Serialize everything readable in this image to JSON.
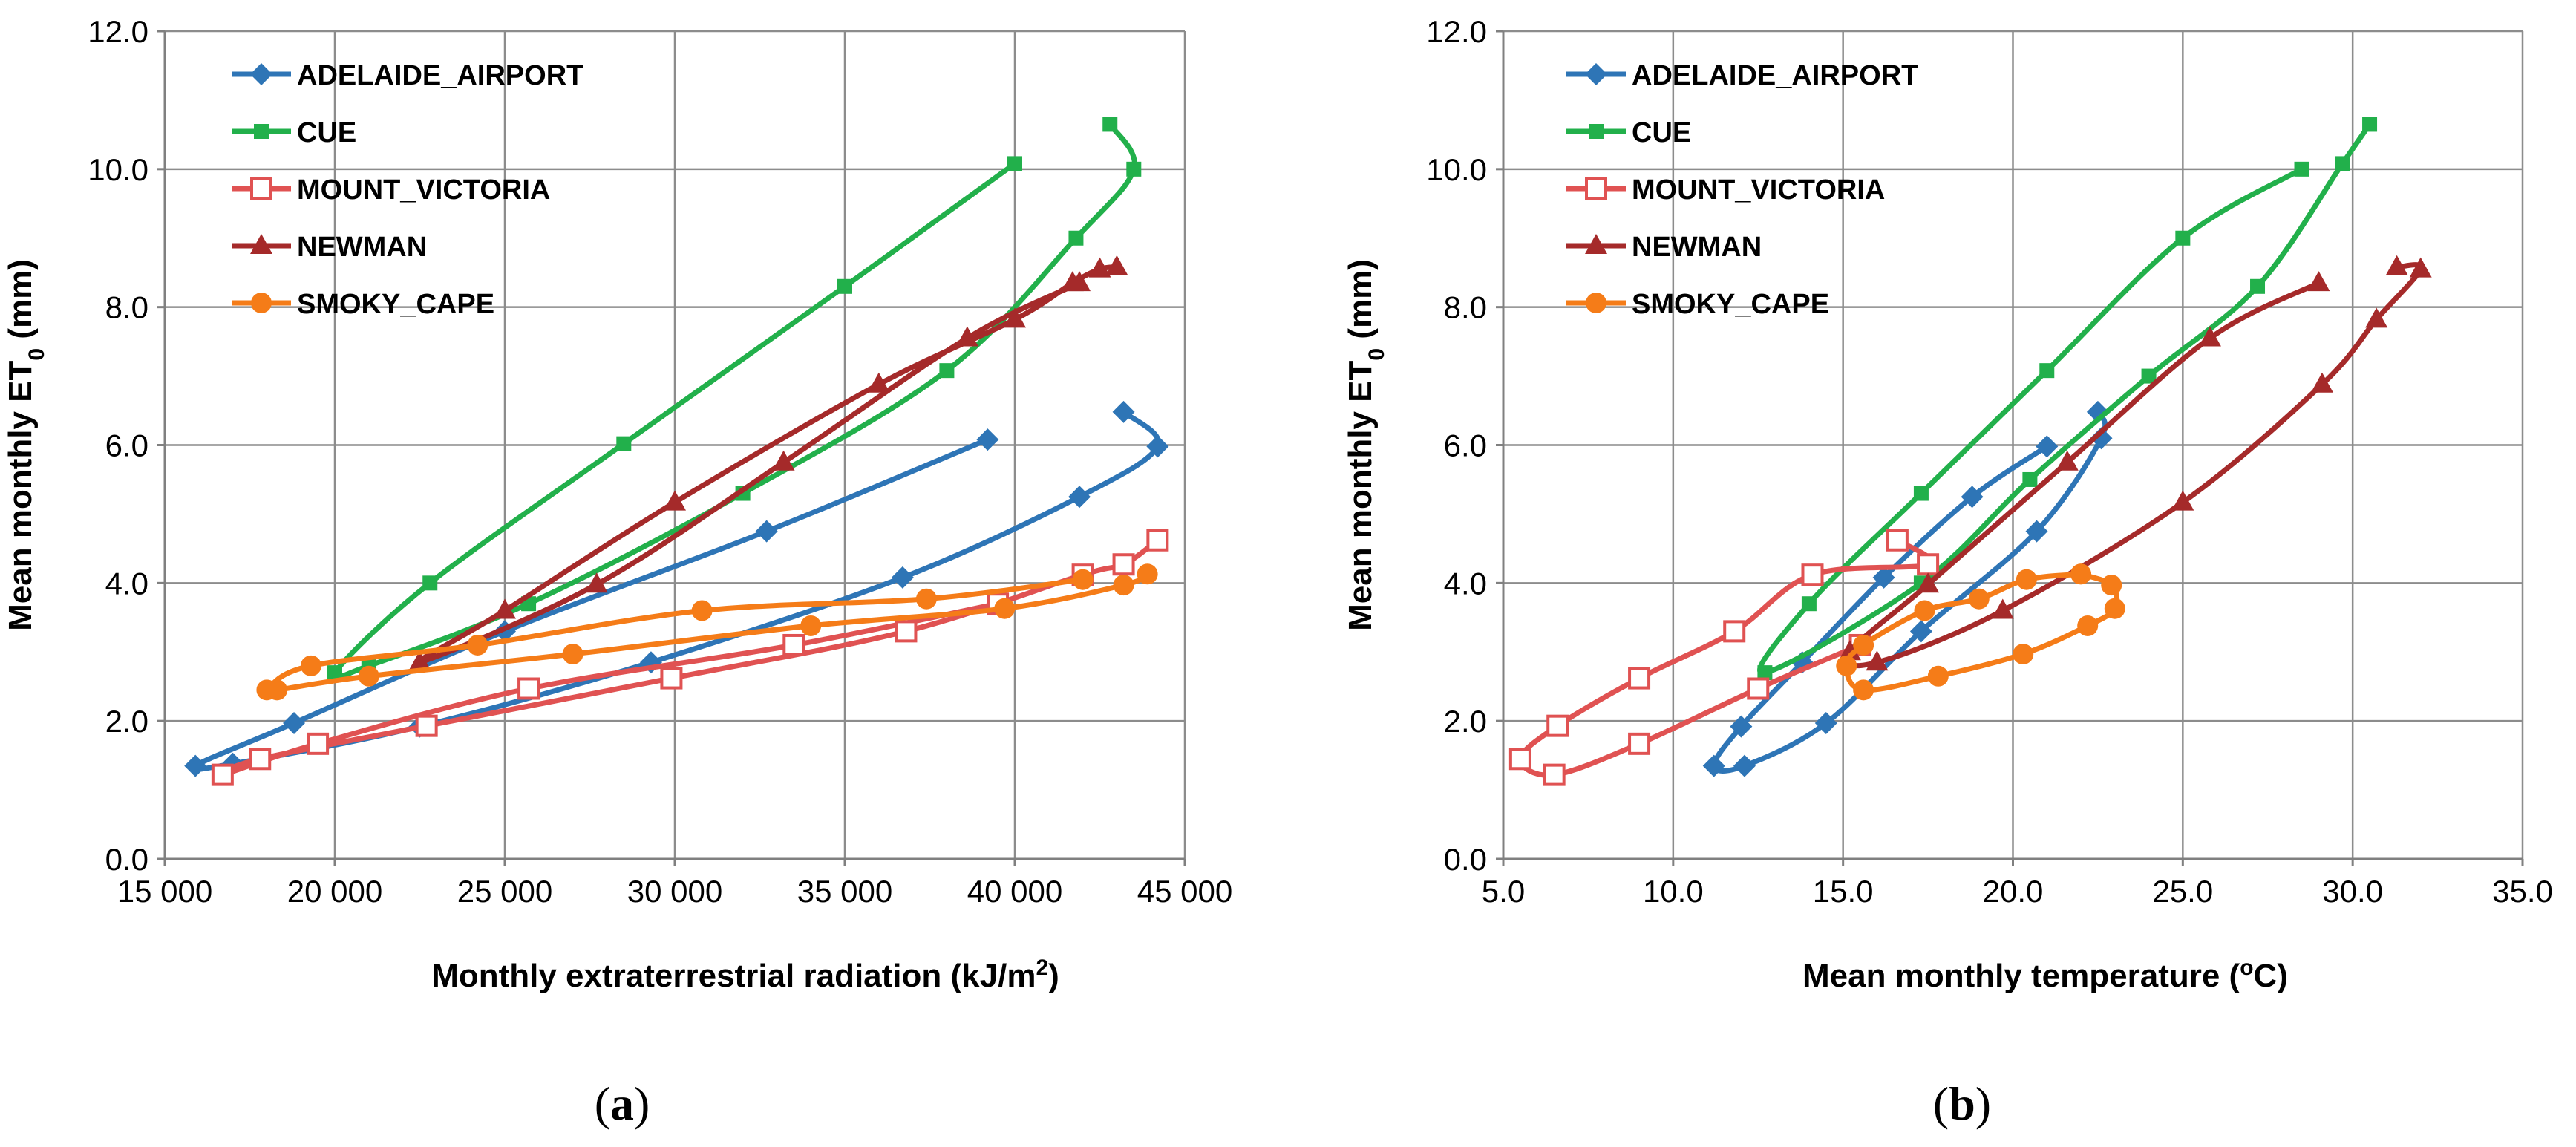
{
  "chart_data": [
    {
      "type": "line",
      "panel_label": "(a)",
      "panel_letter": "a",
      "xlabel": "Monthly extraterrestrial radiation (kJ/m",
      "xlabel_sup": "2",
      "xlabel_suffix": ")",
      "ylabel": "Mean monthly ET",
      "ylabel_sub": "0",
      "ylabel_suffix": " (mm)",
      "xlim": [
        15000,
        45000
      ],
      "ylim": [
        0,
        12
      ],
      "xticks": [
        15000,
        20000,
        25000,
        30000,
        35000,
        40000,
        45000
      ],
      "xtick_labels": [
        "15 000",
        "20 000",
        "25 000",
        "30 000",
        "35 000",
        "40 000",
        "45 000"
      ],
      "yticks": [
        0,
        2,
        4,
        6,
        8,
        10,
        12
      ],
      "ytick_labels": [
        "0.0",
        "2.0",
        "4.0",
        "6.0",
        "8.0",
        "10.0",
        "12.0"
      ],
      "grid": true,
      "legend_position": "top-left",
      "series": [
        {
          "name": "ADELAIDE_AIRPORT",
          "color": "#2E75B6",
          "marker": "diamond",
          "x": [
            43200,
            44200,
            41900,
            36700,
            29300,
            22500,
            17000,
            15900,
            18800,
            25000,
            32700,
            39200
          ],
          "y": [
            6.48,
            5.98,
            5.25,
            4.08,
            2.85,
            1.92,
            1.38,
            1.35,
            1.97,
            3.3,
            4.75,
            6.08
          ]
        },
        {
          "name": "CUE",
          "color": "#22B04B",
          "marker": "square",
          "x": [
            42800,
            43500,
            41800,
            38000,
            32000,
            25700,
            21000,
            20000,
            22800,
            28500,
            35000,
            40000
          ],
          "y": [
            10.65,
            10.0,
            9.0,
            7.08,
            5.3,
            3.7,
            2.8,
            2.7,
            4.0,
            6.02,
            8.3,
            10.08
          ]
        },
        {
          "name": "MOUNT_VICTORIA",
          "color": "#E05252",
          "marker": "square-open",
          "x": [
            44200,
            43200,
            42000,
            36800,
            29900,
            22700,
            17800,
            16700,
            19500,
            25700,
            33500,
            39500
          ],
          "y": [
            4.62,
            4.27,
            4.12,
            3.3,
            2.62,
            1.93,
            1.45,
            1.22,
            1.67,
            2.47,
            3.1,
            3.7
          ]
        },
        {
          "name": "NEWMAN",
          "color": "#A52A2A",
          "marker": "triangle",
          "x": [
            43000,
            42500,
            41700,
            40000,
            36000,
            30000,
            25000,
            22500,
            27700,
            33200,
            38600,
            41900
          ],
          "y": [
            8.58,
            8.55,
            8.35,
            7.82,
            6.88,
            5.17,
            3.6,
            2.85,
            3.98,
            5.75,
            7.55,
            8.35
          ]
        },
        {
          "name": "SMOKY_CAPE",
          "color": "#F57C18",
          "marker": "circle",
          "x": [
            43900,
            43200,
            39700,
            34000,
            27000,
            21000,
            18300,
            18000,
            19300,
            24200,
            30800,
            37400,
            42000
          ],
          "y": [
            4.13,
            3.97,
            3.63,
            3.38,
            2.97,
            2.65,
            2.45,
            2.45,
            2.8,
            3.1,
            3.6,
            3.77,
            4.05
          ]
        }
      ]
    },
    {
      "type": "line",
      "panel_label": "(b)",
      "panel_letter": "b",
      "xlabel": "Mean monthly temperature (",
      "xlabel_sup": "o",
      "xlabel_suffix": "C)",
      "ylabel": "Mean monthly ET",
      "ylabel_sub": "0",
      "ylabel_suffix": " (mm)",
      "xlim": [
        5,
        35
      ],
      "ylim": [
        0,
        12
      ],
      "xticks": [
        5,
        10,
        15,
        20,
        25,
        30,
        35
      ],
      "xtick_labels": [
        "5.0",
        "10.0",
        "15.0",
        "20.0",
        "25.0",
        "30.0",
        "35.0"
      ],
      "yticks": [
        0,
        2,
        4,
        6,
        8,
        10,
        12
      ],
      "ytick_labels": [
        "0.0",
        "2.0",
        "4.0",
        "6.0",
        "8.0",
        "10.0",
        "12.0"
      ],
      "grid": true,
      "legend_position": "top-left",
      "series": [
        {
          "name": "ADELAIDE_AIRPORT",
          "color": "#2E75B6",
          "marker": "diamond",
          "x": [
            22.5,
            22.6,
            20.7,
            17.3,
            14.5,
            12.1,
            11.2,
            12.0,
            13.8,
            16.2,
            18.8,
            21.0
          ],
          "y": [
            6.48,
            6.1,
            4.75,
            3.3,
            1.97,
            1.35,
            1.35,
            1.92,
            2.85,
            4.08,
            5.25,
            5.98
          ]
        },
        {
          "name": "CUE",
          "color": "#22B04B",
          "marker": "square",
          "x": [
            30.5,
            29.7,
            27.2,
            24.0,
            20.5,
            17.3,
            12.7,
            14.0,
            17.3,
            21.0,
            25.0,
            28.5
          ],
          "y": [
            10.65,
            10.08,
            8.3,
            7.0,
            5.5,
            4.0,
            2.7,
            3.7,
            5.3,
            7.08,
            9.0,
            10.0
          ]
        },
        {
          "name": "MOUNT_VICTORIA",
          "color": "#E05252",
          "marker": "square-open",
          "x": [
            16.6,
            17.5,
            14.1,
            11.8,
            9.0,
            6.6,
            5.5,
            6.5,
            9.0,
            12.5,
            15.5
          ],
          "y": [
            4.62,
            4.27,
            4.12,
            3.3,
            2.62,
            1.93,
            1.45,
            1.22,
            1.67,
            2.47,
            3.1
          ]
        },
        {
          "name": "NEWMAN",
          "color": "#A52A2A",
          "marker": "triangle",
          "x": [
            31.3,
            32.0,
            30.7,
            29.1,
            25.0,
            19.7,
            16.0,
            15.2,
            17.5,
            21.6,
            25.8,
            29.0
          ],
          "y": [
            8.58,
            8.55,
            7.82,
            6.88,
            5.17,
            3.6,
            2.85,
            3.0,
            3.98,
            5.75,
            7.55,
            8.35
          ]
        },
        {
          "name": "SMOKY_CAPE",
          "color": "#F57C18",
          "marker": "circle",
          "x": [
            22.0,
            22.9,
            23.0,
            22.2,
            20.3,
            17.8,
            15.6,
            15.1,
            15.6,
            17.4,
            19.0,
            20.4,
            22.0
          ],
          "y": [
            4.13,
            3.97,
            3.63,
            3.38,
            2.97,
            2.65,
            2.45,
            2.8,
            3.1,
            3.6,
            3.77,
            4.05,
            4.13
          ]
        }
      ]
    }
  ]
}
